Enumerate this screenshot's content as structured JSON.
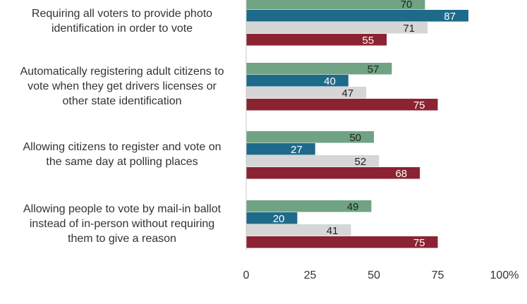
{
  "chart_data": {
    "type": "bar",
    "orientation": "horizontal",
    "categories": [
      [
        "Requiring all voters to provide photo",
        "identification in order to vote"
      ],
      [
        "Automatically registering adult citizens to",
        "vote when they get drivers licenses or",
        "other state identification"
      ],
      [
        "Allowing citizens to register and vote on",
        "the same day at polling places"
      ],
      [
        "Allowing people to vote by mail-in ballot",
        "instead of in-person without requiring",
        "them to give a reason"
      ]
    ],
    "series": [
      {
        "color": "#6fa383",
        "text_color": "#222222",
        "values": [
          70,
          57,
          50,
          49
        ]
      },
      {
        "color": "#1e6a8a",
        "text_color": "#ffffff",
        "values": [
          87,
          40,
          27,
          20
        ]
      },
      {
        "color": "#d6d6d6",
        "text_color": "#222222",
        "values": [
          71,
          47,
          52,
          41
        ]
      },
      {
        "color": "#8b2332",
        "text_color": "#ffffff",
        "values": [
          55,
          75,
          68,
          75
        ]
      }
    ],
    "xlim": [
      0,
      100
    ],
    "xticks": [
      "0",
      "25",
      "50",
      "75",
      "100%"
    ],
    "grid": false
  }
}
